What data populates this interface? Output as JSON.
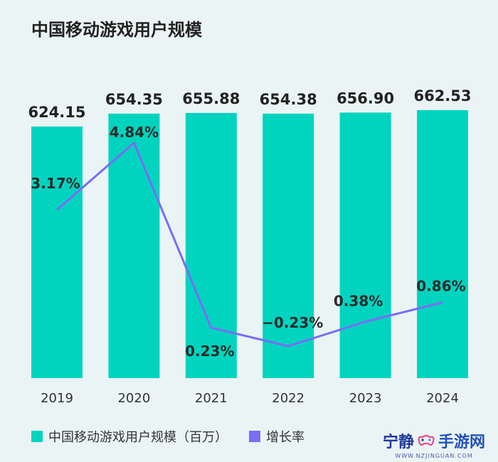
{
  "title": "中国移动游戏用户规模",
  "chart_data": {
    "type": "bar",
    "categories": [
      "2019",
      "2020",
      "2021",
      "2022",
      "2023",
      "2024"
    ],
    "series": [
      {
        "name": "中国移动游戏用户规模（百万）",
        "type": "bar",
        "values": [
          624.15,
          654.35,
          655.88,
          654.38,
          656.9,
          662.53
        ],
        "labels": [
          "624.15",
          "654.35",
          "655.88",
          "654.38",
          "656.90",
          "662.53"
        ],
        "color": "#00d4bf"
      },
      {
        "name": "增长率",
        "type": "line",
        "values": [
          3.17,
          4.84,
          0.23,
          -0.23,
          0.38,
          0.86
        ],
        "labels": [
          "3.17%",
          "4.84%",
          "0.23%",
          "−0.23%",
          "0.38%",
          "0.86%"
        ],
        "color": "#7a6cf5"
      }
    ],
    "legend": "bottom-left"
  },
  "watermark": {
    "brand_left": "宁静",
    "brand_right": "手游网",
    "url": "WWW.NZJINGUAN.COM"
  }
}
